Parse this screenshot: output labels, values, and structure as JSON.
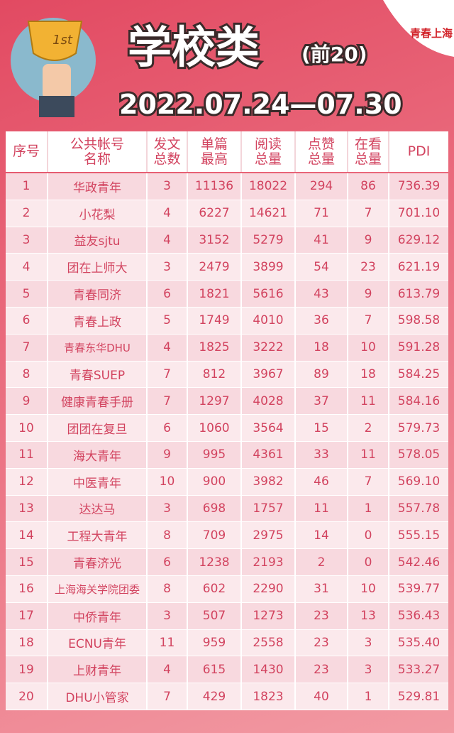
{
  "header": {
    "badge": "1st",
    "title": "学校类",
    "subtitle": "(前20)",
    "date": "2022.07.24—07.30",
    "logo": "青春上海"
  },
  "table": {
    "columns": [
      [
        "序号"
      ],
      [
        "公共帐号",
        "名称"
      ],
      [
        "发文",
        "总数"
      ],
      [
        "单篇",
        "最高"
      ],
      [
        "阅读",
        "总量"
      ],
      [
        "点赞",
        "总量"
      ],
      [
        "在看",
        "总量"
      ],
      [
        "PDI"
      ]
    ],
    "rows": [
      [
        "1",
        "华政青年",
        "3",
        "11136",
        "18022",
        "294",
        "86",
        "736.39"
      ],
      [
        "2",
        "小花梨",
        "4",
        "6227",
        "14621",
        "71",
        "7",
        "701.10"
      ],
      [
        "3",
        "益友sjtu",
        "4",
        "3152",
        "5279",
        "41",
        "9",
        "629.12"
      ],
      [
        "4",
        "团在上师大",
        "3",
        "2479",
        "3899",
        "54",
        "23",
        "621.19"
      ],
      [
        "5",
        "青春同济",
        "6",
        "1821",
        "5616",
        "43",
        "9",
        "613.79"
      ],
      [
        "6",
        "青春上政",
        "5",
        "1749",
        "4010",
        "36",
        "7",
        "598.58"
      ],
      [
        "7",
        "青春东华DHU",
        "4",
        "1825",
        "3222",
        "18",
        "10",
        "591.28"
      ],
      [
        "8",
        "青春SUEP",
        "7",
        "812",
        "3967",
        "89",
        "18",
        "584.25"
      ],
      [
        "9",
        "健康青春手册",
        "7",
        "1297",
        "4028",
        "37",
        "11",
        "584.16"
      ],
      [
        "10",
        "团团在复旦",
        "6",
        "1060",
        "3564",
        "15",
        "2",
        "579.73"
      ],
      [
        "11",
        "海大青年",
        "9",
        "995",
        "4361",
        "33",
        "11",
        "578.05"
      ],
      [
        "12",
        "中医青年",
        "10",
        "900",
        "3982",
        "46",
        "7",
        "569.10"
      ],
      [
        "13",
        "达达马",
        "3",
        "698",
        "1757",
        "11",
        "1",
        "557.78"
      ],
      [
        "14",
        "工程大青年",
        "8",
        "709",
        "2975",
        "14",
        "0",
        "555.15"
      ],
      [
        "15",
        "青春济光",
        "6",
        "1238",
        "2193",
        "2",
        "0",
        "542.46"
      ],
      [
        "16",
        "上海海关学院团委",
        "8",
        "602",
        "2290",
        "31",
        "10",
        "539.77"
      ],
      [
        "17",
        "中侨青年",
        "3",
        "507",
        "1273",
        "23",
        "13",
        "536.43"
      ],
      [
        "18",
        "ECNU青年",
        "11",
        "959",
        "2558",
        "23",
        "3",
        "535.40"
      ],
      [
        "19",
        "上财青年",
        "4",
        "615",
        "1430",
        "23",
        "3",
        "533.27"
      ],
      [
        "20",
        "DHU小管家",
        "7",
        "429",
        "1823",
        "40",
        "1",
        "529.81"
      ]
    ]
  }
}
